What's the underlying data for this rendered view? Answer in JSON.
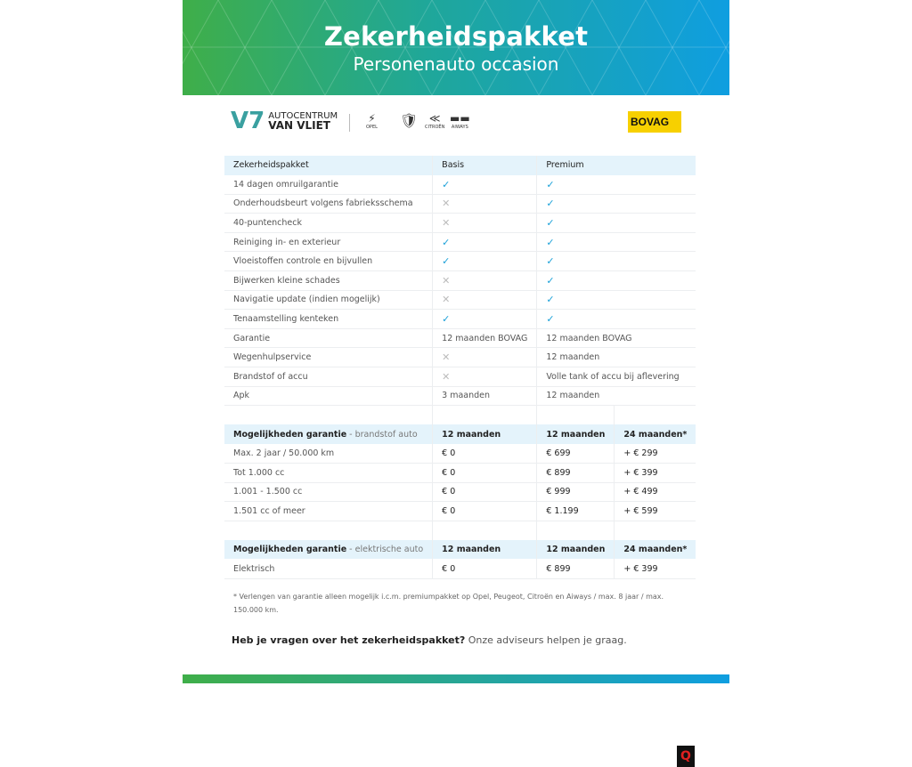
{
  "header": {
    "title": "Zekerheidspakket",
    "subtitle": "Personenauto occasion"
  },
  "logos": {
    "dealer_line1": "AUTOCENTRUM",
    "dealer_line2": "VAN VLIET",
    "brands": [
      "OPEL",
      "PEUGEOT",
      "CITROËN",
      "AIWAYS"
    ],
    "bovag": "BOVAG"
  },
  "package_table": {
    "headers": [
      "Zekerheidspakket",
      "Basis",
      "Premium"
    ],
    "rows": [
      [
        "14 dagen omruilgarantie",
        "check",
        "check"
      ],
      [
        "Onderhoudsbeurt volgens fabrieksschema",
        "cross",
        "check"
      ],
      [
        "40-puntencheck",
        "cross",
        "check"
      ],
      [
        "Reiniging in- en exterieur",
        "check",
        "check"
      ],
      [
        "Vloeistoffen controle en bijvullen",
        "check",
        "check"
      ],
      [
        "Bijwerken kleine schades",
        "cross",
        "check"
      ],
      [
        "Navigatie update (indien mogelijk)",
        "cross",
        "check"
      ],
      [
        "Tenaamstelling kenteken",
        "check",
        "check"
      ],
      [
        "Garantie",
        "12 maanden BOVAG",
        "12 maanden BOVAG"
      ],
      [
        "Wegenhulpservice",
        "cross",
        "12 maanden"
      ],
      [
        "Brandstof of accu",
        "cross",
        "Volle tank of accu bij aflevering"
      ],
      [
        "Apk",
        "3 maanden",
        "12 maanden"
      ]
    ]
  },
  "fuel_table": {
    "title": "Mogelijkheden garantie",
    "subtitle": " - brandstof auto",
    "headers": [
      "12 maanden",
      "12 maanden",
      "24 maanden*"
    ],
    "rows": [
      [
        "Max. 2 jaar / 50.000 km",
        "€ 0",
        "€ 699",
        "+ € 299"
      ],
      [
        "Tot 1.000 cc",
        "€ 0",
        "€ 899",
        "+ € 399"
      ],
      [
        "1.001 - 1.500 cc",
        "€ 0",
        "€ 999",
        "+ € 499"
      ],
      [
        "1.501 cc of meer",
        "€ 0",
        "€ 1.199",
        "+ € 599"
      ]
    ]
  },
  "electric_table": {
    "title": "Mogelijkheden garantie",
    "subtitle": " - elektrische auto",
    "headers": [
      "12 maanden",
      "12 maanden",
      "24 maanden*"
    ],
    "rows": [
      [
        "Elektrisch",
        "€ 0",
        "€ 899",
        "+ € 399"
      ]
    ]
  },
  "footnote": "* Verlengen van garantie alleen mogelijk i.c.m. premiumpakket op Opel, Peugeot, Citroën en Aiways / max. 8 jaar / max. 150.000 km.",
  "question": {
    "bold": "Heb je vragen over het zekerheidspakket?",
    "text": " Onze adviseurs helpen je graag."
  },
  "colors": {
    "check": "#1aa0d8",
    "header_bg": "#e4f3fb",
    "gradient_start": "#3fae49",
    "gradient_end": "#0f9ee0"
  }
}
